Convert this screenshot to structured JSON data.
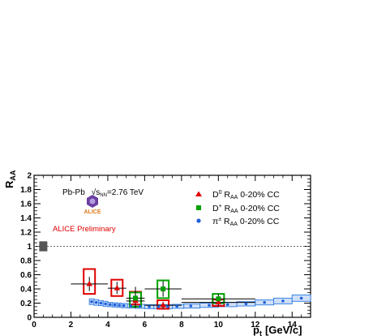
{
  "chart_data": {
    "type": "scatter",
    "title": "",
    "xlabel": "p",
    "xlabel_sub": "t",
    "xlabel_unit": "[GeV/c]",
    "ylabel": "R",
    "ylabel_sub": "AA",
    "xlim": [
      0,
      15
    ],
    "ylim": [
      0,
      2
    ],
    "x_ticks": [
      0,
      2,
      4,
      6,
      8,
      10,
      12,
      14
    ],
    "y_ticks": [
      0,
      0.2,
      0.4,
      0.6,
      0.8,
      1,
      1.2,
      1.4,
      1.6,
      1.8,
      2
    ],
    "grid": false,
    "reference_line": 1,
    "global_uncertainty_box": {
      "x": 0.5,
      "low": 0.93,
      "high": 1.07,
      "color": "#555555"
    },
    "annotations": {
      "system": "Pb-Pb",
      "energy_symbol": "√s",
      "energy_sub": "NN",
      "energy_value": "=2.76 TeV",
      "logo_label": "ALICE",
      "preliminary": "ALICE Preliminary"
    },
    "legend_position": "top-right",
    "series": [
      {
        "name": "D0",
        "legend_base": "D",
        "legend_sup": "0",
        "legend_suffix": " R",
        "legend_sub": "AA",
        "legend_tail": " 0-20% CC",
        "marker": "triangle",
        "color": "#e00000",
        "points": [
          {
            "x": 3,
            "y": 0.47,
            "xlo": 2,
            "xhi": 4,
            "ylo": 0.37,
            "yhi": 0.57,
            "syslo": 0.33,
            "syshi": 0.68
          },
          {
            "x": 4.5,
            "y": 0.41,
            "xlo": 4,
            "xhi": 5,
            "ylo": 0.33,
            "yhi": 0.5,
            "syslo": 0.3,
            "syshi": 0.53
          },
          {
            "x": 5.5,
            "y": 0.23,
            "xlo": 5,
            "xhi": 6,
            "ylo": 0.13,
            "yhi": 0.33,
            "syslo": 0.18,
            "syshi": 0.36
          },
          {
            "x": 7,
            "y": 0.17,
            "xlo": 6,
            "xhi": 8,
            "ylo": 0.12,
            "yhi": 0.22,
            "syslo": 0.12,
            "syshi": 0.24
          },
          {
            "x": 10,
            "y": 0.21,
            "xlo": 8,
            "xhi": 12,
            "ylo": 0.16,
            "yhi": 0.26,
            "syslo": 0.16,
            "syshi": 0.25
          }
        ]
      },
      {
        "name": "D+",
        "legend_base": "D",
        "legend_sup": "+",
        "legend_suffix": " R",
        "legend_sub": "AA",
        "legend_tail": " 0-20% CC",
        "marker": "square",
        "color": "#00a000",
        "points": [
          {
            "x": 5.5,
            "y": 0.27,
            "xlo": 5,
            "xhi": 6,
            "ylo": 0.14,
            "yhi": 0.43,
            "syslo": 0.15,
            "syshi": 0.35
          },
          {
            "x": 7,
            "y": 0.4,
            "xlo": 6,
            "xhi": 8,
            "ylo": 0.29,
            "yhi": 0.51,
            "syslo": 0.27,
            "syshi": 0.52
          },
          {
            "x": 10,
            "y": 0.26,
            "xlo": 8,
            "xhi": 12,
            "ylo": 0.19,
            "yhi": 0.33,
            "syslo": 0.2,
            "syshi": 0.33
          }
        ]
      },
      {
        "name": "pi",
        "legend_base": "π",
        "legend_sup": "±",
        "legend_suffix": " R",
        "legend_sub": "AA",
        "legend_tail": " 0-20% CC",
        "marker": "circle",
        "color": "#1f5fd8",
        "band_color": "#3b83e6",
        "points": [
          {
            "x": 3.125,
            "y": 0.22,
            "sys": 0.04
          },
          {
            "x": 3.375,
            "y": 0.21,
            "sys": 0.04
          },
          {
            "x": 3.625,
            "y": 0.2,
            "sys": 0.035
          },
          {
            "x": 3.875,
            "y": 0.19,
            "sys": 0.035
          },
          {
            "x": 4.125,
            "y": 0.18,
            "sys": 0.03
          },
          {
            "x": 4.375,
            "y": 0.175,
            "sys": 0.03
          },
          {
            "x": 4.625,
            "y": 0.17,
            "sys": 0.03
          },
          {
            "x": 4.875,
            "y": 0.165,
            "sys": 0.03
          },
          {
            "x": 5.25,
            "y": 0.16,
            "sys": 0.028
          },
          {
            "x": 5.75,
            "y": 0.155,
            "sys": 0.028
          },
          {
            "x": 6.25,
            "y": 0.15,
            "sys": 0.028
          },
          {
            "x": 6.75,
            "y": 0.15,
            "sys": 0.028
          },
          {
            "x": 7.25,
            "y": 0.15,
            "sys": 0.028
          },
          {
            "x": 7.75,
            "y": 0.155,
            "sys": 0.028
          },
          {
            "x": 8.5,
            "y": 0.16,
            "sys": 0.03
          },
          {
            "x": 9.5,
            "y": 0.17,
            "sys": 0.03
          },
          {
            "x": 10.5,
            "y": 0.18,
            "sys": 0.03
          },
          {
            "x": 11.5,
            "y": 0.19,
            "sys": 0.03
          },
          {
            "x": 12.5,
            "y": 0.21,
            "sys": 0.035
          },
          {
            "x": 13.5,
            "y": 0.23,
            "sys": 0.04
          },
          {
            "x": 14.5,
            "y": 0.27,
            "sys": 0.045
          }
        ]
      }
    ]
  }
}
